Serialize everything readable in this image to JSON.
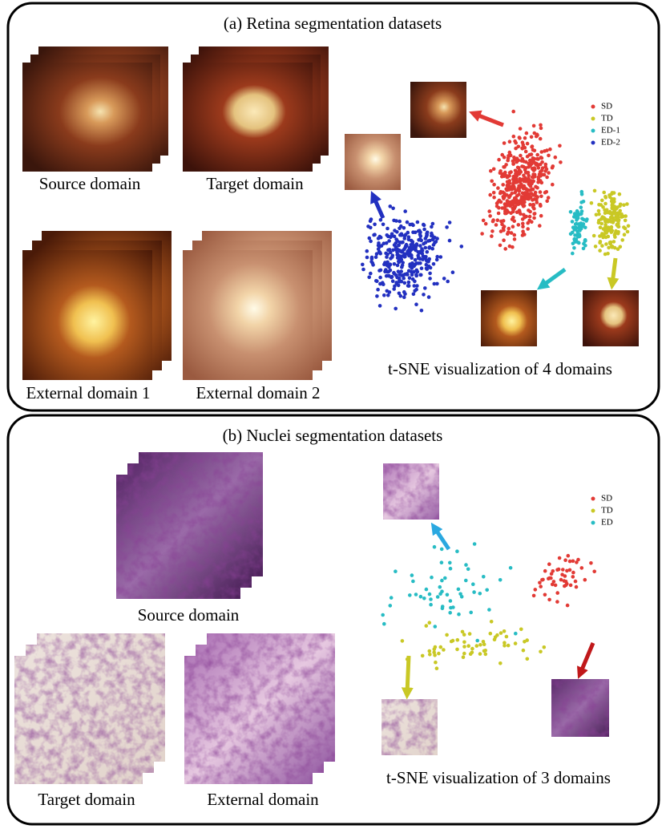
{
  "panels": [
    {
      "title": "(a) Retina segmentation datasets",
      "images": [
        "Source domain",
        "Target domain",
        "External domain 1",
        "External domain 2"
      ],
      "legend": [
        {
          "name": "SD",
          "color": "#e23a35"
        },
        {
          "name": "TD",
          "color": "#c9c825"
        },
        {
          "name": "ED-1",
          "color": "#27bcc4"
        },
        {
          "name": "ED-2",
          "color": "#2230c0"
        }
      ],
      "caption": "t-SNE visualization of 4 domains"
    },
    {
      "title": "(b) Nuclei segmentation datasets",
      "images": [
        "Source domain",
        "Target domain",
        "External domain"
      ],
      "legend": [
        {
          "name": "SD",
          "color": "#e23a35"
        },
        {
          "name": "TD",
          "color": "#c9c825"
        },
        {
          "name": "ED",
          "color": "#27bcc4"
        }
      ],
      "caption": "t-SNE visualization of 3 domains"
    }
  ]
}
